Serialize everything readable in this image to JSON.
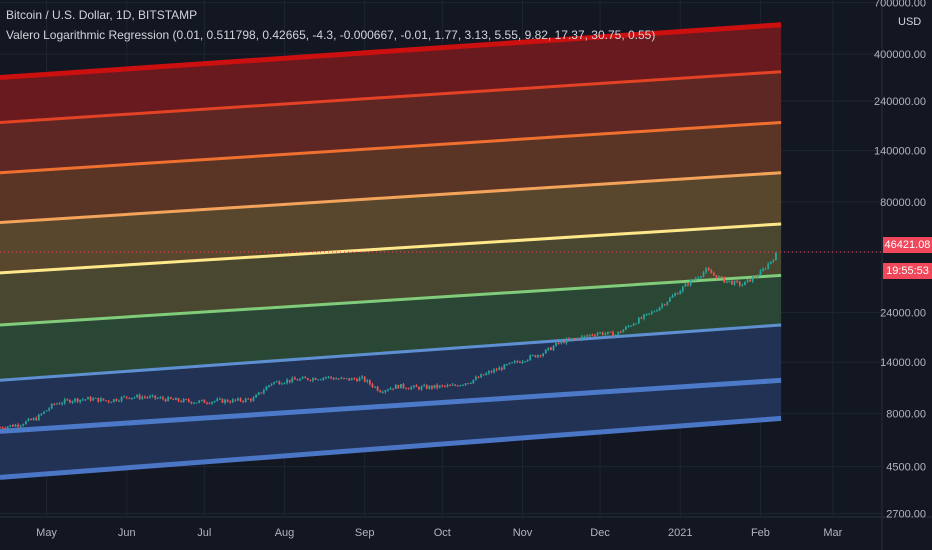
{
  "header": {
    "symbol": "Bitcoin / U.S. Dollar, 1D, BITSTAMP",
    "indicator": "Valero Logarithmic Regression (0.01, 0.511798, 0.42665, -4.3, -0.000667, -0.01, 1.77, 3.13, 5.55, 9.82, 17.37, 30.75, 0.55)"
  },
  "price_axis": {
    "unit": "USD",
    "last_price": "46421.08",
    "countdown": "19:55:53"
  },
  "colors": {
    "background": "#131722",
    "axis_text": "#b2b5be",
    "last_price_bg": "#f0475a",
    "up": "#26a69a",
    "down": "#ef5350"
  },
  "chart_data": {
    "type": "line",
    "scale": "log",
    "title": "",
    "x_ticks": [
      "May",
      "Jun",
      "Jul",
      "Aug",
      "Sep",
      "Oct",
      "Nov",
      "Dec",
      "2021",
      "Feb",
      "Mar"
    ],
    "y_ticks": [
      700000,
      400000,
      240000,
      140000,
      80000,
      46421.08,
      24000,
      14000,
      8000,
      4500,
      2700
    ],
    "ylim": [
      2600,
      720000
    ],
    "x_range": [
      "2020-04-13",
      "2021-03-20"
    ],
    "last_price": 46421.08,
    "regression_bands": [
      {
        "color": "#cc0f0f",
        "fill": "#6e1a1f",
        "start": [
          "2020-04-13",
          310000
        ],
        "end": [
          "2021-02-09",
          550000
        ]
      },
      {
        "color": "#e34224",
        "fill": "#632824",
        "start": [
          "2020-04-13",
          190000
        ],
        "end": [
          "2021-02-09",
          330000
        ]
      },
      {
        "color": "#f07030",
        "fill": "#5e3625",
        "start": [
          "2020-04-13",
          110000
        ],
        "end": [
          "2021-02-09",
          190000
        ]
      },
      {
        "color": "#f4a35a",
        "fill": "#5d4a2e",
        "start": [
          "2020-04-13",
          64000
        ],
        "end": [
          "2021-02-09",
          110000
        ]
      },
      {
        "color": "#ffe88a",
        "fill": "#4d4a31",
        "start": [
          "2020-04-13",
          37000
        ],
        "end": [
          "2021-02-09",
          63000
        ]
      },
      {
        "color": "#80cc7a",
        "fill": "#2b4a37",
        "start": [
          "2020-04-13",
          21000
        ],
        "end": [
          "2021-02-09",
          36000
        ]
      },
      {
        "color": "#5e8fd0",
        "fill": "#223457",
        "start": [
          "2020-04-13",
          11500
        ],
        "end": [
          "2021-02-09",
          21000
        ]
      },
      {
        "color": "#4c79c8",
        "fill": null,
        "start": [
          "2020-04-13",
          6600
        ],
        "end": [
          "2021-02-09",
          11500
        ]
      },
      {
        "color": "#4b75c5",
        "fill": null,
        "start": [
          "2020-04-13",
          4000
        ],
        "end": [
          "2021-02-09",
          7600
        ]
      }
    ],
    "price_series": [
      [
        "2020-04-13",
        6900
      ],
      [
        "2020-04-20",
        7100
      ],
      [
        "2020-04-27",
        7600
      ],
      [
        "2020-05-04",
        8900
      ],
      [
        "2020-05-11",
        9300
      ],
      [
        "2020-05-18",
        9400
      ],
      [
        "2020-05-25",
        9200
      ],
      [
        "2020-06-01",
        9600
      ],
      [
        "2020-06-08",
        9600
      ],
      [
        "2020-06-15",
        9400
      ],
      [
        "2020-06-22",
        9200
      ],
      [
        "2020-06-29",
        9100
      ],
      [
        "2020-07-06",
        9200
      ],
      [
        "2020-07-13",
        9200
      ],
      [
        "2020-07-20",
        9400
      ],
      [
        "2020-07-27",
        11200
      ],
      [
        "2020-08-03",
        11500
      ],
      [
        "2020-08-10",
        11700
      ],
      [
        "2020-08-17",
        11900
      ],
      [
        "2020-08-24",
        11600
      ],
      [
        "2020-08-31",
        11700
      ],
      [
        "2020-09-07",
        10300
      ],
      [
        "2020-09-14",
        10800
      ],
      [
        "2020-09-21",
        10600
      ],
      [
        "2020-09-28",
        10700
      ],
      [
        "2020-10-05",
        10800
      ],
      [
        "2020-10-12",
        11400
      ],
      [
        "2020-10-19",
        12500
      ],
      [
        "2020-10-26",
        13500
      ],
      [
        "2020-11-02",
        14500
      ],
      [
        "2020-11-09",
        15500
      ],
      [
        "2020-11-16",
        17500
      ],
      [
        "2020-11-23",
        18200
      ],
      [
        "2020-11-30",
        19300
      ],
      [
        "2020-12-07",
        18900
      ],
      [
        "2020-12-14",
        21500
      ],
      [
        "2020-12-21",
        24000
      ],
      [
        "2020-12-28",
        28000
      ],
      [
        "2021-01-04",
        33000
      ],
      [
        "2021-01-11",
        38000
      ],
      [
        "2021-01-18",
        34000
      ],
      [
        "2021-01-25",
        32500
      ],
      [
        "2021-02-01",
        37000
      ],
      [
        "2021-02-08",
        46421.08
      ]
    ]
  }
}
